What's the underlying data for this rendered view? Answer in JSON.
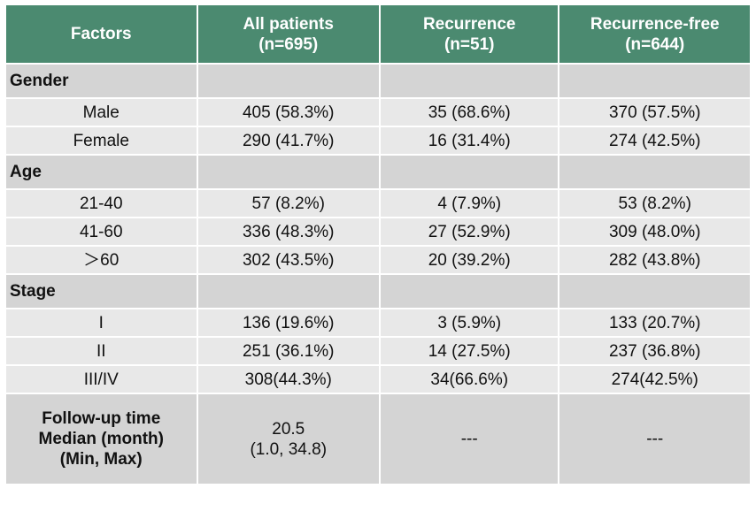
{
  "table": {
    "header": [
      [
        "Factors"
      ],
      [
        "All patients",
        "(n=695)"
      ],
      [
        "Recurrence",
        "(n=51)"
      ],
      [
        "Recurrence-free",
        "(n=644)"
      ]
    ],
    "sections": [
      {
        "title": "Gender",
        "rows": [
          [
            "Male",
            "405 (58.3%)",
            "35 (68.6%)",
            "370 (57.5%)"
          ],
          [
            "Female",
            "290 (41.7%)",
            "16 (31.4%)",
            "274 (42.5%)"
          ]
        ]
      },
      {
        "title": "Age",
        "rows": [
          [
            "21-40",
            "57 (8.2%)",
            "4 (7.9%)",
            "53 (8.2%)"
          ],
          [
            "41-60",
            "336 (48.3%)",
            "27 (52.9%)",
            "309 (48.0%)"
          ],
          [
            "＞60",
            "302 (43.5%)",
            "20 (39.2%)",
            "282 (43.8%)"
          ]
        ]
      },
      {
        "title": "Stage",
        "rows": [
          [
            "I",
            "136 (19.6%)",
            "3 (5.9%)",
            "133 (20.7%)"
          ],
          [
            "II",
            "251 (36.1%)",
            "14 (27.5%)",
            "237 (36.8%)"
          ],
          [
            "III/IV",
            "308(44.3%)",
            "34(66.6%)",
            "274(42.5%)"
          ]
        ]
      }
    ],
    "footer": [
      [
        "Follow-up time",
        "Median (month)",
        "(Min, Max)"
      ],
      [
        "20.5",
        "(1.0, 34.8)"
      ],
      [
        "---"
      ],
      [
        "---"
      ]
    ]
  }
}
